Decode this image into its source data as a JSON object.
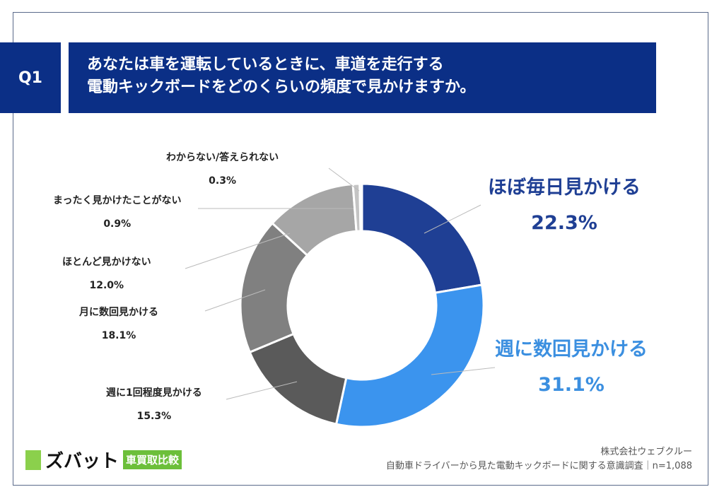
{
  "header": {
    "q_label": "Q1",
    "question_line1": "あなたは車を運転しているときに、車道を走行する",
    "question_line2": "電動キックボードをどのくらいの頻度で見かけますか。"
  },
  "chart_data": {
    "type": "pie",
    "donut": true,
    "start": "12 o'clock",
    "direction": "clockwise",
    "categories": [
      "ほぼ毎日見かける",
      "週に数回見かける",
      "週に1回程度見かける",
      "月に数回見かける",
      "ほとんど見かけない",
      "まったく見かけたことがない",
      "わからない/答えられない"
    ],
    "values": [
      22.3,
      31.1,
      15.3,
      18.1,
      12.0,
      0.9,
      0.3
    ],
    "labels": [
      "22.3%",
      "31.1%",
      "15.3%",
      "18.1%",
      "12.0%",
      "0.9%",
      "0.3%"
    ],
    "colors": [
      "#1f3f94",
      "#3b94ee",
      "#5a5a5a",
      "#808080",
      "#a6a6a6",
      "#c4c4c4",
      "#dadada"
    ]
  },
  "footer": {
    "company": "株式会社ウェブクルー",
    "survey": "自動車ドライバーから見た電動キックボードに関する意識調査｜n=1,088"
  },
  "logo": {
    "name": "ズバット",
    "tag": "車買取比較"
  }
}
